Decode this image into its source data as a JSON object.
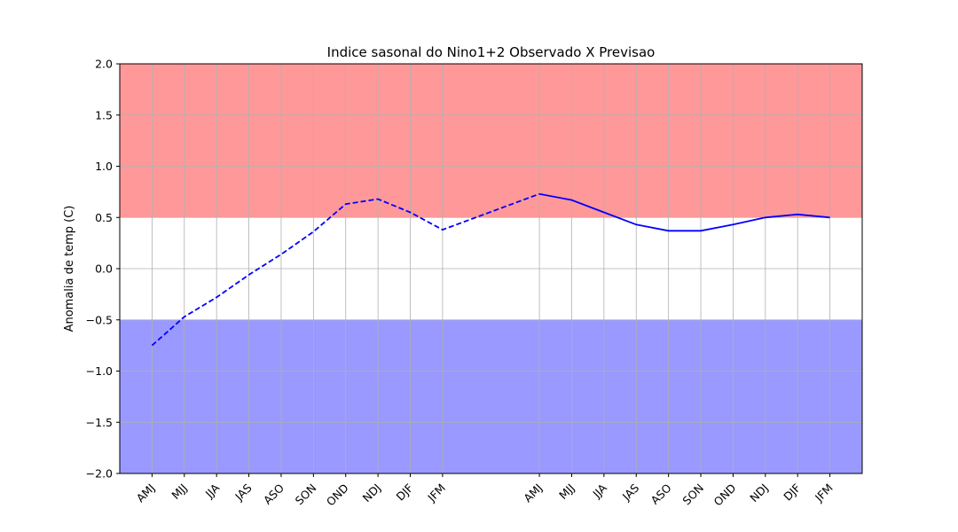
{
  "chart_data": {
    "type": "line",
    "title": "Indice sasonal do Nino1+2 Observado X Previsao",
    "xlabel": "",
    "ylabel": "Anomalia de temp (C)",
    "ylim": [
      -2.0,
      2.0
    ],
    "yticks": [
      "2.0",
      "1.5",
      "1.0",
      "0.5",
      "0.0",
      "−0.5",
      "−1.0",
      "−1.5",
      "−2.0"
    ],
    "ytick_values": [
      2.0,
      1.5,
      1.0,
      0.5,
      0.0,
      -0.5,
      -1.0,
      -1.5,
      -2.0
    ],
    "grid": true,
    "bands": [
      {
        "from": 0.5,
        "to": 2.0,
        "color": "#ff9999"
      },
      {
        "from": -2.0,
        "to": -0.5,
        "color": "#9999ff"
      }
    ],
    "categories": [
      "AMJ",
      "MJJ",
      "JJA",
      "JAS",
      "ASO",
      "SON",
      "OND",
      "NDJ",
      "DJF",
      "JFM",
      "AMJ",
      "MJJ",
      "JJA",
      "JAS",
      "ASO",
      "SON",
      "OND",
      "NDJ",
      "DJF",
      "JFM"
    ],
    "x_positions": [
      1,
      2,
      3,
      4,
      5,
      6,
      7,
      8,
      9,
      10,
      13,
      14,
      15,
      16,
      17,
      18,
      19,
      20,
      21,
      22
    ],
    "xlim": [
      0,
      23
    ],
    "series": [
      {
        "style": "dashed",
        "color": "#0000ff",
        "x": [
          1,
          2,
          3,
          4,
          5,
          6,
          7,
          8,
          9,
          10,
          13
        ],
        "values": [
          -0.75,
          -0.47,
          -0.28,
          -0.06,
          0.14,
          0.36,
          0.63,
          0.68,
          0.55,
          0.38,
          0.73
        ]
      },
      {
        "style": "solid",
        "color": "#0000ff",
        "x": [
          13,
          14,
          15,
          16,
          17,
          18,
          19,
          20,
          21,
          22
        ],
        "values": [
          0.73,
          0.67,
          0.55,
          0.43,
          0.37,
          0.37,
          0.43,
          0.5,
          0.53,
          0.5
        ]
      }
    ]
  }
}
